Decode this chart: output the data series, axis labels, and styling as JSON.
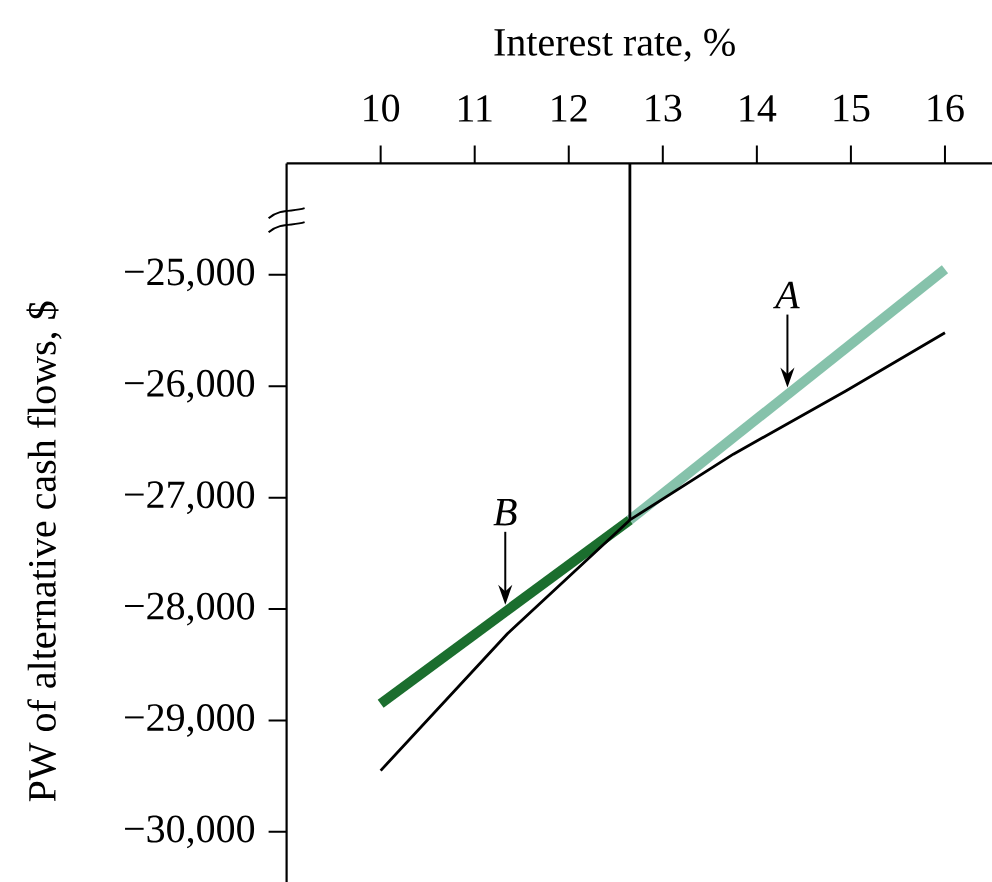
{
  "chart_data": {
    "type": "line",
    "xlabel": "Interest rate, %",
    "ylabel": "PW of alternative cash flows, $",
    "xlim": [
      9,
      16.5
    ],
    "xticks": [
      10,
      11,
      12,
      13,
      14,
      15,
      16
    ],
    "ylim": [
      -30450,
      -24000
    ],
    "yticks": [
      {
        "value": -25000,
        "label": "−25,000"
      },
      {
        "value": -26000,
        "label": "−26,000"
      },
      {
        "value": -27000,
        "label": "−27,000"
      },
      {
        "value": -28000,
        "label": "−28,000"
      },
      {
        "value": -29000,
        "label": "−29,000"
      },
      {
        "value": -30000,
        "label": "−30,000"
      }
    ],
    "series": [
      {
        "name": "B",
        "color": "#1b6e2e",
        "x": [
          10,
          12.65
        ],
        "values": [
          -28850,
          -27200
        ]
      },
      {
        "name": "A",
        "color": "#86c2ab",
        "x": [
          12.65,
          16
        ],
        "values": [
          -27200,
          -24950
        ]
      },
      {
        "color": "#000000",
        "x": [
          10,
          11.35,
          12.65,
          13.75,
          14.95,
          16
        ],
        "values": [
          -29450,
          -28220,
          -27200,
          -26610,
          -26040,
          -25520
        ]
      },
      {
        "color": "#000000",
        "x": [
          12.65,
          12.65
        ],
        "values": [
          -24000,
          -27200
        ]
      }
    ]
  }
}
